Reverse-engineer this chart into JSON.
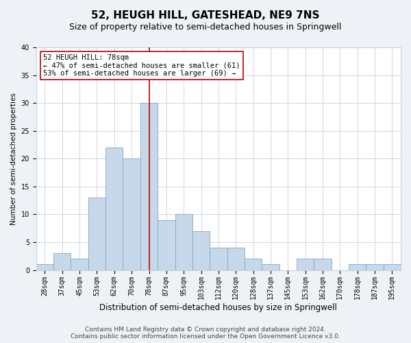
{
  "title": "52, HEUGH HILL, GATESHEAD, NE9 7NS",
  "subtitle": "Size of property relative to semi-detached houses in Springwell",
  "xlabel": "Distribution of semi-detached houses by size in Springwell",
  "ylabel": "Number of semi-detached properties",
  "categories": [
    "28sqm",
    "37sqm",
    "45sqm",
    "53sqm",
    "62sqm",
    "70sqm",
    "78sqm",
    "87sqm",
    "95sqm",
    "103sqm",
    "112sqm",
    "120sqm",
    "128sqm",
    "137sqm",
    "145sqm",
    "153sqm",
    "162sqm",
    "170sqm",
    "178sqm",
    "187sqm",
    "195sqm"
  ],
  "values": [
    1,
    3,
    2,
    13,
    22,
    20,
    30,
    9,
    10,
    7,
    4,
    4,
    2,
    1,
    0,
    2,
    2,
    0,
    1,
    1,
    1
  ],
  "highlight_index": 6,
  "bar_color": "#c8d8eb",
  "bar_edge_color": "#7aaac8",
  "highlight_line_color": "#bb0000",
  "annotation_text": "52 HEUGH HILL: 78sqm\n← 47% of semi-detached houses are smaller (61)\n53% of semi-detached houses are larger (69) →",
  "annotation_box_color": "white",
  "annotation_box_edge_color": "#bb0000",
  "ylim": [
    0,
    40
  ],
  "yticks": [
    0,
    5,
    10,
    15,
    20,
    25,
    30,
    35,
    40
  ],
  "footer": "Contains HM Land Registry data © Crown copyright and database right 2024.\nContains public sector information licensed under the Open Government Licence v3.0.",
  "title_fontsize": 11,
  "subtitle_fontsize": 9,
  "xlabel_fontsize": 8.5,
  "ylabel_fontsize": 7.5,
  "tick_fontsize": 7,
  "annotation_fontsize": 7.5,
  "footer_fontsize": 6.5,
  "background_color": "#eef2f7",
  "plot_background_color": "white",
  "grid_color": "#c8d0dc"
}
